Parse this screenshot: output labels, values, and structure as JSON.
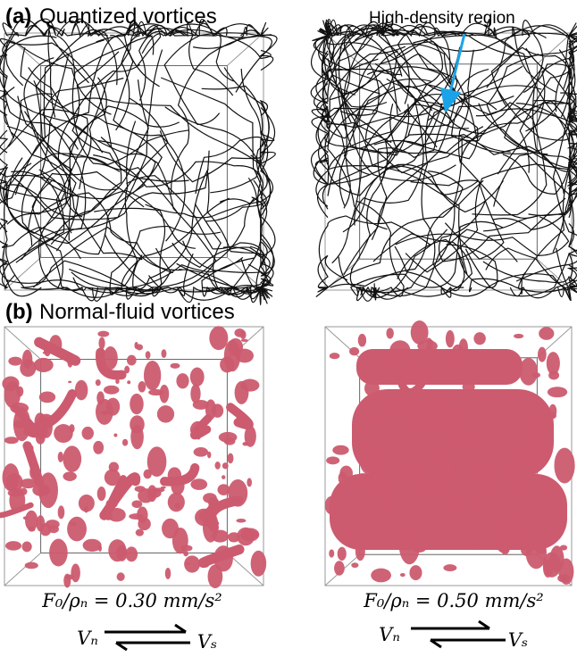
{
  "panel_a": {
    "label": "(a)",
    "title": "Quantized vortices",
    "annotation": "High-density region"
  },
  "panel_b": {
    "label": "(b)",
    "title": "Normal-fluid vortices"
  },
  "conditions": [
    {
      "forcing": "F₀/ρₙ = 0.30 mm/s²",
      "normal_velocity": "Vₙ",
      "superfluid_velocity": "Vₛ"
    },
    {
      "forcing": "F₀/ρₙ = 0.50 mm/s²",
      "normal_velocity": "Vₙ",
      "superfluid_velocity": "Vₛ"
    }
  ]
}
